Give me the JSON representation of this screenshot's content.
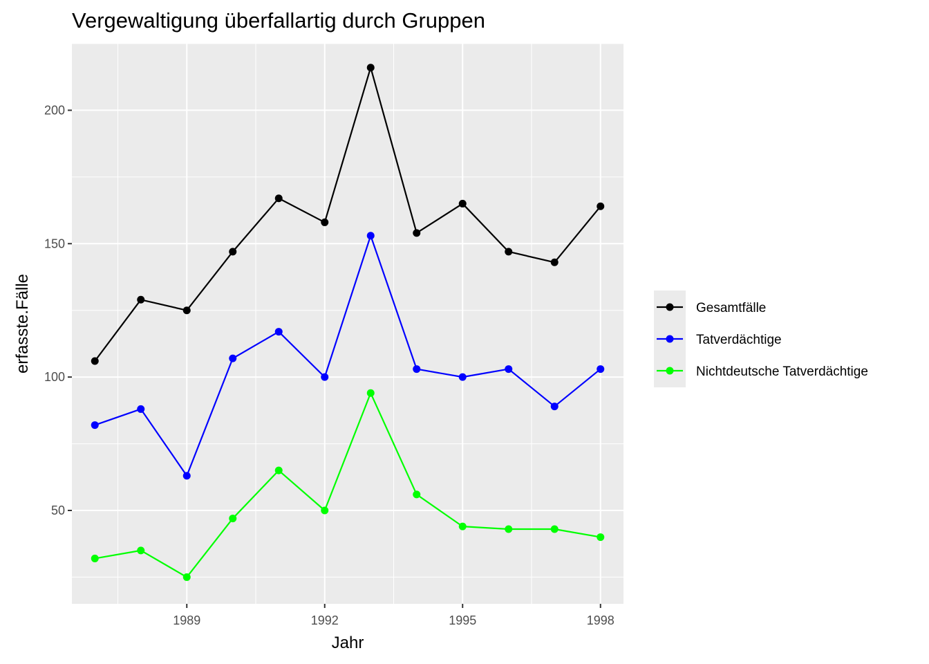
{
  "chart_data": {
    "type": "line",
    "title": "Vergewaltigung überfallartig durch Gruppen",
    "xlabel": "Jahr",
    "ylabel": "erfasste.Fälle",
    "x": [
      1987,
      1988,
      1989,
      1990,
      1991,
      1992,
      1993,
      1994,
      1995,
      1996,
      1997,
      1998
    ],
    "xlim": [
      1986.5,
      1998.5
    ],
    "ylim": [
      15,
      225
    ],
    "x_ticks": [
      1989,
      1992,
      1995,
      1998
    ],
    "y_ticks": [
      50,
      100,
      150,
      200
    ],
    "grid": true,
    "legend_position": "right",
    "series": [
      {
        "name": "Gesamtfälle",
        "color": "#000000",
        "values": [
          106,
          129,
          125,
          147,
          167,
          158,
          216,
          154,
          165,
          147,
          143,
          164
        ]
      },
      {
        "name": "Tatverdächtige",
        "color": "#0000ff",
        "values": [
          82,
          88,
          63,
          107,
          117,
          100,
          153,
          103,
          100,
          103,
          89,
          103
        ]
      },
      {
        "name": "Nichtdeutsche Tatverdächtige",
        "color": "#00ff00",
        "values": [
          32,
          35,
          25,
          47,
          65,
          50,
          94,
          56,
          44,
          43,
          43,
          40
        ]
      }
    ]
  }
}
